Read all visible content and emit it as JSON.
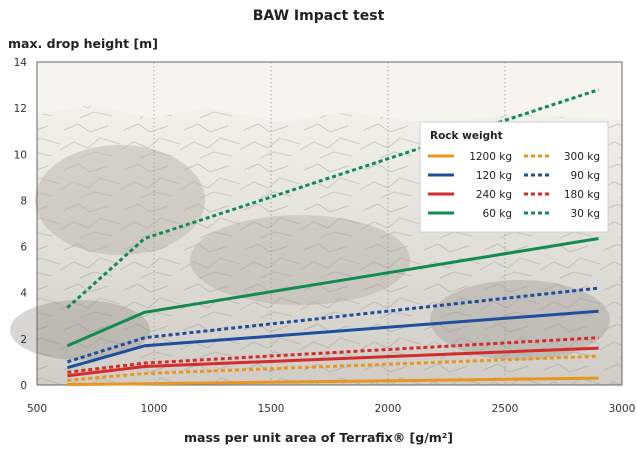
{
  "chart_data": {
    "type": "line",
    "title": "BAW Impact test",
    "ylabel": "max. drop height [m]",
    "xlabel": "mass per unit area of Terrafix® [g/m²]",
    "xlim": [
      500,
      3000
    ],
    "ylim": [
      0,
      14
    ],
    "x_ticks": [
      500,
      1000,
      1500,
      2000,
      2500,
      3000
    ],
    "y_ticks": [
      0,
      2,
      4,
      6,
      8,
      10,
      12,
      14
    ],
    "grid": "vertical-dotted",
    "background": "rock-photo",
    "legend": {
      "title": "Rock weight",
      "position": "top-right"
    },
    "x": [
      630,
      960,
      2900
    ],
    "series": [
      {
        "name": "1200 kg",
        "style": "solid",
        "color": "#e8961e",
        "values": [
          0.02,
          0.05,
          0.3
        ]
      },
      {
        "name": "300 kg",
        "style": "dashed",
        "color": "#e8961e",
        "values": [
          0.2,
          0.5,
          1.25
        ]
      },
      {
        "name": "120 kg",
        "style": "solid",
        "color": "#1f4e9c",
        "values": [
          0.75,
          1.7,
          3.2
        ]
      },
      {
        "name": "90 kg",
        "style": "dashed",
        "color": "#1f4e9c",
        "values": [
          1.0,
          2.05,
          4.2
        ]
      },
      {
        "name": "240 kg",
        "style": "solid",
        "color": "#d42b2b",
        "values": [
          0.4,
          0.8,
          1.6
        ]
      },
      {
        "name": "180 kg",
        "style": "dashed",
        "color": "#d42b2b",
        "values": [
          0.55,
          0.95,
          2.05
        ]
      },
      {
        "name": "60 kg",
        "style": "solid",
        "color": "#138a4f",
        "values": [
          1.7,
          3.15,
          6.35
        ]
      },
      {
        "name": "30 kg",
        "style": "dashed",
        "color": "#138a4f",
        "values": [
          3.35,
          6.35,
          12.8
        ]
      }
    ]
  }
}
